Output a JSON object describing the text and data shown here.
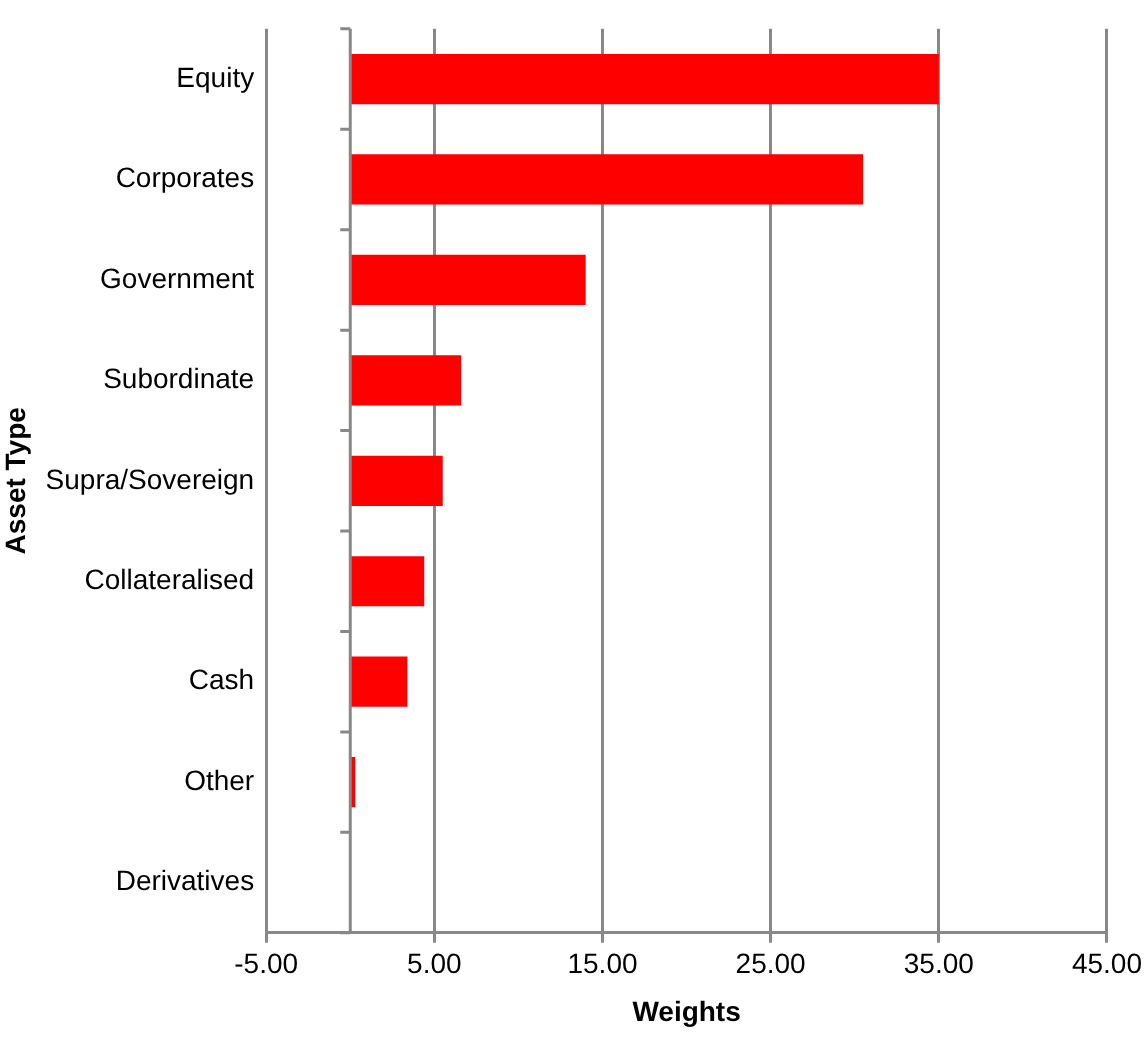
{
  "chart_data": {
    "type": "bar",
    "orientation": "horizontal",
    "xlabel": "Weights",
    "ylabel": "Asset Type",
    "categories": [
      "Equity",
      "Corporates",
      "Government",
      "Subordinate",
      "Supra/Sovereign",
      "Collateralised",
      "Cash",
      "Other",
      "Derivatives"
    ],
    "values": [
      35.0,
      30.5,
      14.0,
      6.6,
      5.5,
      4.4,
      3.4,
      0.3,
      0
    ],
    "color": "#ff0000",
    "xlim": [
      -5,
      45
    ],
    "xticks": [
      {
        "value": -5,
        "label": "-5.00"
      },
      {
        "value": 5,
        "label": "5.00"
      },
      {
        "value": 15,
        "label": "15.00"
      },
      {
        "value": 25,
        "label": "25.00"
      },
      {
        "value": 35,
        "label": "35.00"
      },
      {
        "value": 45,
        "label": "45.00"
      }
    ],
    "grid": "x",
    "legend": false
  }
}
